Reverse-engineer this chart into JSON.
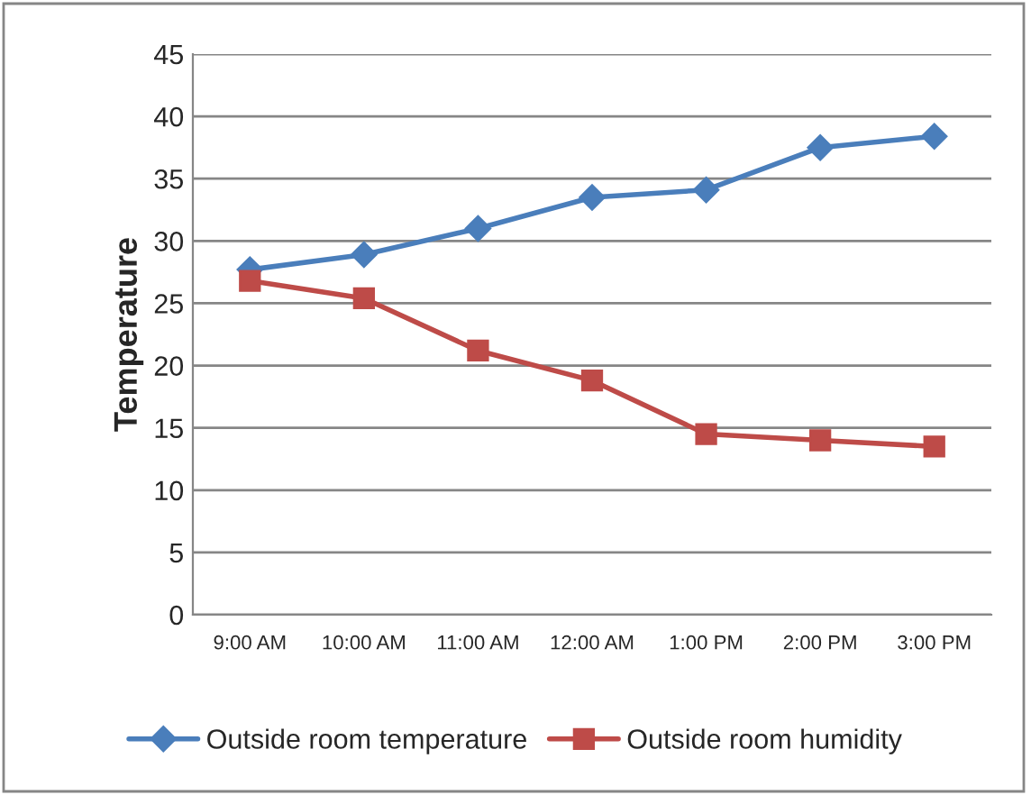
{
  "chart_data": {
    "type": "line",
    "ylabel": "Temperature",
    "categories": [
      "9:00 AM",
      "10:00 AM",
      "11:00 AM",
      "12:00 AM",
      "1:00 PM",
      "2:00 PM",
      "3:00 PM"
    ],
    "series": [
      {
        "name": "Outside room temperature",
        "color": "#4a7ebb",
        "marker": "diamond",
        "values": [
          27.7,
          28.9,
          31,
          33.5,
          34.1,
          37.5,
          38.4
        ]
      },
      {
        "name": "Outside room humidity",
        "color": "#be4b48",
        "marker": "square",
        "values": [
          26.8,
          25.4,
          21.2,
          18.8,
          14.5,
          14.0,
          13.5
        ]
      }
    ],
    "ylim": [
      0,
      45
    ],
    "yticks": [
      0,
      5,
      10,
      15,
      20,
      25,
      30,
      35,
      40,
      45
    ],
    "grid": "y",
    "legend": "bottom"
  }
}
